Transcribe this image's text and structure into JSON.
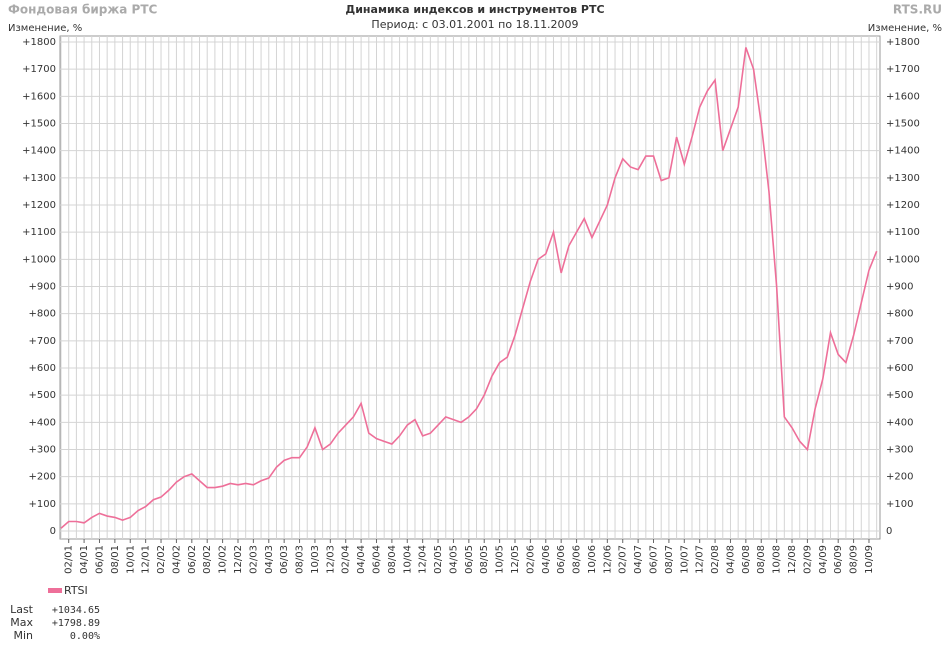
{
  "header": {
    "left": "Фондовая биржа РТС",
    "right": "RTS.RU"
  },
  "chart_data": {
    "type": "line",
    "title": "Динамика индексов и инструментов РТС",
    "subtitle": "Период: с 03.01.2001 по 18.11.2009",
    "ylabel": "Изменение, %",
    "y2label": "Изменение, %",
    "grid": true,
    "x": [
      null,
      "02/01",
      null,
      "04/01",
      null,
      "06/01",
      null,
      "08/01",
      null,
      "10/01",
      null,
      "12/01",
      null,
      "02/02",
      null,
      "04/02",
      null,
      "06/02",
      null,
      "08/02",
      null,
      "10/02",
      null,
      "12/02",
      null,
      "02/03",
      null,
      "04/03",
      null,
      "06/03",
      null,
      "08/03",
      null,
      "10/03",
      null,
      "12/03",
      null,
      "02/04",
      null,
      "04/04",
      null,
      "06/04",
      null,
      "08/04",
      null,
      "10/04",
      null,
      "12/04",
      null,
      "02/05",
      null,
      "04/05",
      null,
      "06/05",
      null,
      "08/05",
      null,
      "10/05",
      null,
      "12/05",
      null,
      "02/06",
      null,
      "04/06",
      null,
      "06/06",
      null,
      "08/06",
      null,
      "10/06",
      null,
      "12/06",
      null,
      "02/07",
      null,
      "04/07",
      null,
      "06/07",
      null,
      "08/07",
      null,
      "10/07",
      null,
      "12/07",
      null,
      "02/08",
      null,
      "04/08",
      null,
      "06/08",
      null,
      "08/08",
      null,
      "10/08",
      null,
      "12/08",
      null,
      "02/09",
      null,
      "04/09",
      null,
      "06/09",
      null,
      "08/09",
      null,
      "10/09",
      null
    ],
    "series": [
      {
        "name": "RTSI",
        "color": "#ee6f99",
        "values": [
          10,
          35,
          35,
          30,
          50,
          65,
          55,
          50,
          40,
          50,
          75,
          90,
          115,
          125,
          150,
          180,
          200,
          210,
          185,
          160,
          160,
          165,
          175,
          170,
          175,
          170,
          185,
          195,
          235,
          260,
          270,
          270,
          310,
          380,
          300,
          320,
          360,
          390,
          420,
          470,
          360,
          340,
          330,
          320,
          350,
          390,
          410,
          350,
          360,
          390,
          420,
          410,
          400,
          420,
          450,
          500,
          570,
          620,
          640,
          720,
          820,
          920,
          1000,
          1020,
          1100,
          950,
          1050,
          1100,
          1150,
          1080,
          1140,
          1200,
          1300,
          1370,
          1340,
          1330,
          1380,
          1380,
          1290,
          1300,
          1450,
          1350,
          1450,
          1560,
          1620,
          1660,
          1400,
          1480,
          1560,
          1780,
          1700,
          1500,
          1250,
          900,
          420,
          380,
          330,
          300,
          450,
          560,
          730,
          650,
          620,
          720,
          840,
          960,
          1030
        ]
      }
    ],
    "ylim": [
      0,
      1800
    ],
    "yticks": [
      0,
      {
        "value": 100,
        "label": "+100"
      },
      {
        "value": 200,
        "label": "+200"
      },
      {
        "value": 300,
        "label": "+300"
      },
      {
        "value": 400,
        "label": "+400"
      },
      {
        "value": 500,
        "label": "+500"
      },
      {
        "value": 600,
        "label": "+600"
      },
      {
        "value": 700,
        "label": "+700"
      },
      {
        "value": 800,
        "label": "+800"
      },
      {
        "value": 900,
        "label": "+900"
      },
      {
        "value": 1000,
        "label": "+1000"
      },
      {
        "value": 1100,
        "label": "+1100"
      },
      {
        "value": 1200,
        "label": "+1200"
      },
      {
        "value": 1300,
        "label": "+1300"
      },
      {
        "value": 1400,
        "label": "+1400"
      },
      {
        "value": 1500,
        "label": "+1500"
      },
      {
        "value": 1600,
        "label": "+1600"
      },
      {
        "value": 1700,
        "label": "+1700"
      },
      {
        "value": 1800,
        "label": "+1800"
      }
    ],
    "stats": [
      {
        "label": "Last",
        "value": "+1034.65"
      },
      {
        "label": "Max",
        "value": "+1798.89"
      },
      {
        "label": "Min",
        "value": "0.00%"
      }
    ]
  }
}
